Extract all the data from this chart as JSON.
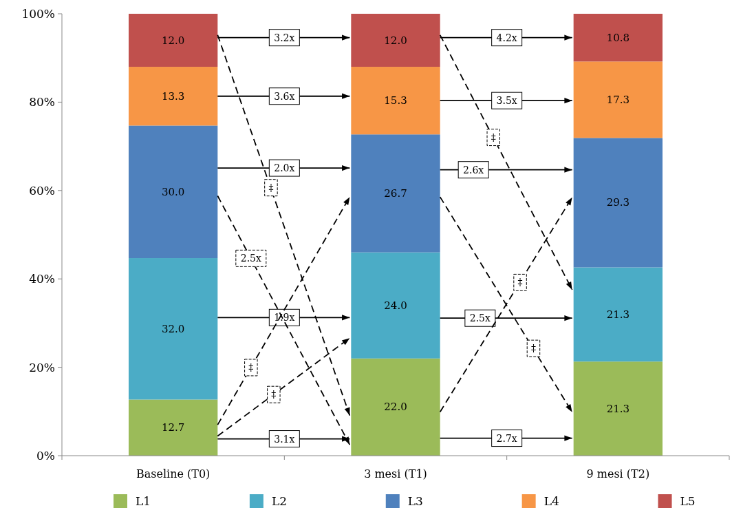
{
  "chart_data": {
    "type": "bar",
    "stacked": true,
    "legend": "bottom",
    "grid": false,
    "categories": [
      "Baseline (T0)",
      "3 mesi (T1)",
      "9 mesi (T2)"
    ],
    "series": [
      {
        "name": "L1",
        "color": "#9bbb59",
        "values": [
          12.7,
          22.0,
          21.3
        ],
        "value_labels": [
          "12.7",
          "22.0",
          "21.3"
        ]
      },
      {
        "name": "L2",
        "color": "#4bacc6",
        "values": [
          32.0,
          24.0,
          21.3
        ],
        "value_labels": [
          "32.0",
          "24.0",
          "21.3"
        ]
      },
      {
        "name": "L3",
        "color": "#4f81bd",
        "values": [
          30.0,
          26.7,
          29.3
        ],
        "value_labels": [
          "30.0",
          "26.7",
          "29.3"
        ]
      },
      {
        "name": "L4",
        "color": "#f79646",
        "values": [
          13.3,
          15.3,
          17.3
        ],
        "value_labels": [
          "13.3",
          "15.3",
          "17.3"
        ]
      },
      {
        "name": "L5",
        "color": "#c0504d",
        "values": [
          12.0,
          12.0,
          10.8
        ],
        "value_labels": [
          "12.0",
          "12.0",
          "10.8"
        ]
      }
    ],
    "ylim": [
      0,
      100
    ],
    "yticks": [
      {
        "value": 0,
        "label": "0%"
      },
      {
        "value": 20,
        "label": "20%"
      },
      {
        "value": 40,
        "label": "40%"
      },
      {
        "value": 60,
        "label": "60%"
      },
      {
        "value": 80,
        "label": "80%"
      },
      {
        "value": 100,
        "label": "100%"
      }
    ],
    "annotations": [
      "3.2x",
      "3.6x",
      "2.0x",
      "1.9x",
      "3.1x",
      "‡",
      "2.5x",
      "‡",
      "‡",
      "4.2x",
      "3.5x",
      "2.6x",
      "2.5x",
      "2.7x",
      "‡",
      "‡",
      "‡"
    ]
  }
}
